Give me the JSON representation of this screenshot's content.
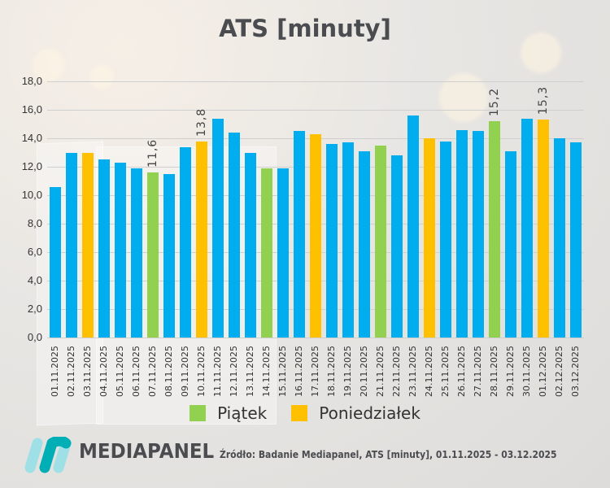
{
  "title": "ATS [minuty]",
  "colors": {
    "default": "#00aeef",
    "friday": "#92d050",
    "monday": "#ffc000",
    "text": "#4a4c50",
    "grid": "#cfcfcf"
  },
  "legend": {
    "items": [
      {
        "label": "Piątek",
        "color": "#92d050"
      },
      {
        "label": "Poniedziałek",
        "color": "#ffc000"
      }
    ]
  },
  "footer": {
    "brand": "MEDIAPANEL",
    "source": "Źródło: Badanie Mediapanel, ATS [minuty], 01.11.2025 - 03.12.2025"
  },
  "chart_data": {
    "type": "bar",
    "title": "ATS [minuty]",
    "xlabel": "",
    "ylabel": "",
    "ylim": [
      0,
      18
    ],
    "yticks": [
      "0,0",
      "2,0",
      "4,0",
      "6,0",
      "8,0",
      "10,0",
      "12,0",
      "14,0",
      "16,0",
      "18,0"
    ],
    "grid": true,
    "legend_position": "bottom",
    "categories": [
      "01.11.2025",
      "02.11.2025",
      "03.11.2025",
      "04.11.2025",
      "05.11.2025",
      "06.11.2025",
      "07.11.2025",
      "08.11.2025",
      "09.11.2025",
      "10.11.2025",
      "11.11.2025",
      "12.11.2025",
      "13.11.2025",
      "14.11.2025",
      "15.11.2025",
      "16.11.2025",
      "17.11.2025",
      "18.11.2025",
      "19.11.2025",
      "20.11.2025",
      "21.11.2025",
      "22.11.2025",
      "23.11.2025",
      "24.11.2025",
      "25.11.2025",
      "26.11.2025",
      "27.11.2025",
      "28.11.2025",
      "29.11.2025",
      "30.11.2025",
      "01.12.2025",
      "02.12.2025",
      "03.12.2025"
    ],
    "values": [
      10.6,
      13.0,
      13.0,
      12.5,
      12.3,
      11.9,
      11.6,
      11.5,
      13.4,
      13.8,
      15.4,
      14.4,
      13.0,
      11.9,
      11.9,
      14.5,
      14.3,
      13.6,
      13.7,
      13.1,
      13.5,
      12.8,
      15.6,
      14.0,
      13.8,
      14.6,
      14.5,
      15.2,
      13.1,
      15.4,
      15.3,
      14.0,
      13.7
    ],
    "day_type": [
      "",
      "",
      "monday",
      "",
      "",
      "",
      "friday",
      "",
      "",
      "monday",
      "",
      "",
      "",
      "friday",
      "",
      "",
      "monday",
      "",
      "",
      "",
      "friday",
      "",
      "",
      "monday",
      "",
      "",
      "",
      "friday",
      "",
      "",
      "monday",
      "",
      ""
    ],
    "data_labels": {
      "6": "11,6",
      "9": "13,8",
      "27": "15,2",
      "30": "15,3"
    }
  }
}
